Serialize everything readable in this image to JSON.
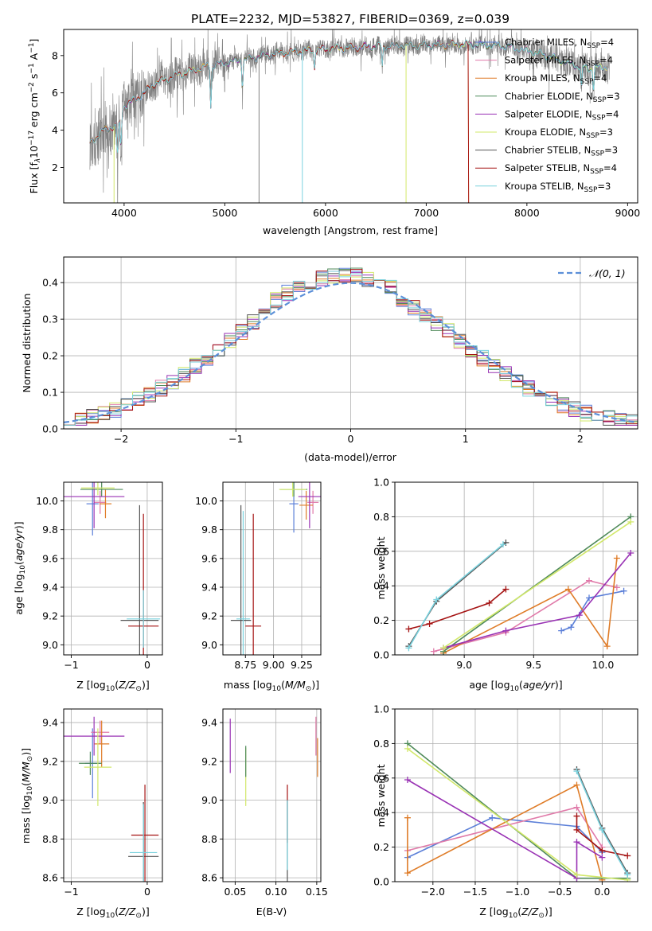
{
  "figure_title": "PLATE=2232, MJD=53827, FIBERID=0369, z=0.039",
  "colors": {
    "chabrier_miles": "#5b7fd8",
    "salpeter_miles": "#e07aa9",
    "kroupa_miles": "#df7c28",
    "chabrier_elodie": "#4f8a5a",
    "salpeter_elodie": "#9932b4",
    "kroupa_elodie": "#d2e86a",
    "chabrier_stelib": "#555555",
    "salpeter_stelib": "#a51414",
    "kroupa_stelib": "#7ad2de",
    "data": "#808080",
    "normal": "#5b8fd8"
  },
  "chart_data": [
    {
      "type": "line",
      "panel": "spectrum",
      "xlabel": "wavelength [Angstrom, rest frame]",
      "ylabel": "Flux [f_λ 10^-17 erg cm^-2 s^-1 A^-1]",
      "xlim": [
        3400,
        9100
      ],
      "ylim": [
        0.1,
        9.4
      ],
      "xticks": [
        "4000",
        "5000",
        "6000",
        "7000",
        "8000",
        "9000"
      ],
      "yticks": [
        "2",
        "4",
        "6",
        "8"
      ],
      "legend_position": "top-right",
      "legend": [
        {
          "label": "Chabrier MILES, N",
          "sub": "SSP",
          "tail": "=4",
          "color": "#5b7fd8"
        },
        {
          "label": "Salpeter MILES, N",
          "sub": "SSP",
          "tail": "=4",
          "color": "#e07aa9"
        },
        {
          "label": "Kroupa MILES, N",
          "sub": "SSP",
          "tail": "=4",
          "color": "#df7c28"
        },
        {
          "label": "Chabrier ELODIE, N",
          "sub": "SSP",
          "tail": "=3",
          "color": "#4f8a5a"
        },
        {
          "label": "Salpeter ELODIE, N",
          "sub": "SSP",
          "tail": "=4",
          "color": "#9932b4"
        },
        {
          "label": "Kroupa ELODIE, N",
          "sub": "SSP",
          "tail": "=3",
          "color": "#d2e86a"
        },
        {
          "label": "Chabrier STELIB, N",
          "sub": "SSP",
          "tail": "=3",
          "color": "#555555"
        },
        {
          "label": "Salpeter STELIB, N",
          "sub": "SSP",
          "tail": "=4",
          "color": "#a51414"
        },
        {
          "label": "Kroupa STELIB, N",
          "sub": "SSP",
          "tail": "=3",
          "color": "#7ad2de"
        }
      ],
      "continuum": [
        [
          3660,
          3.3
        ],
        [
          3700,
          3.5
        ],
        [
          3800,
          4.0
        ],
        [
          3900,
          4.2
        ],
        [
          3960,
          4.35
        ],
        [
          4000,
          5.3
        ],
        [
          4100,
          5.6
        ],
        [
          4200,
          6.0
        ],
        [
          4300,
          6.5
        ],
        [
          4500,
          6.9
        ],
        [
          4800,
          7.4
        ],
        [
          5000,
          7.6
        ],
        [
          5200,
          7.8
        ],
        [
          5500,
          8.1
        ],
        [
          6000,
          8.35
        ],
        [
          6500,
          8.5
        ],
        [
          7000,
          8.55
        ],
        [
          7400,
          8.6
        ],
        [
          7800,
          8.5
        ],
        [
          8200,
          8.0
        ],
        [
          8400,
          7.6
        ],
        [
          8600,
          7.3
        ],
        [
          8800,
          7.4
        ]
      ],
      "dips": [
        [
          3934,
          1.6
        ],
        [
          3968,
          1.4
        ],
        [
          4861,
          2.2
        ],
        [
          5175,
          1.4
        ],
        [
          5890,
          1.0
        ],
        [
          6563,
          1.2
        ],
        [
          8542,
          1.2
        ],
        [
          8662,
          1.2
        ]
      ],
      "model_end": {
        "default": 8800,
        "salpeter_stelib": 7420,
        "kroupa_miles": 7420
      },
      "noise_amp": 1.3,
      "noise_seed": 17
    },
    {
      "type": "step",
      "panel": "residual_histogram",
      "xlabel": "(data-model)/error",
      "ylabel": "Normed distribution",
      "xlim": [
        -2.5,
        2.5
      ],
      "ylim": [
        0,
        0.47
      ],
      "xticks": [
        "−2",
        "−1",
        "0",
        "1",
        "2"
      ],
      "yticks": [
        "0.0",
        "0.1",
        "0.2",
        "0.3",
        "0.4"
      ],
      "grid": true,
      "legend_position": "top-right",
      "normal_label": "𝒩(0, 1)",
      "bin_width": 0.1,
      "envelope": "gaussian"
    },
    {
      "type": "scatter_errorbar",
      "panel": "age_vs_Z",
      "xlabel": "Z [log10(Z/Z⊙)]",
      "ylabel": "age [log10(age/yr)]",
      "xlim": [
        -1.1,
        0.2
      ],
      "ylim": [
        8.93,
        10.13
      ],
      "xticks": [
        "−1",
        "0"
      ],
      "yticks": [
        "9.0",
        "9.2",
        "9.4",
        "9.6",
        "9.8",
        "10.0"
      ],
      "grid": true,
      "points": [
        {
          "model": "chabrier_miles",
          "x": -0.72,
          "y": 9.98,
          "xe": 0.08,
          "ye": 0.22
        },
        {
          "model": "salpeter_miles",
          "x": -0.62,
          "y": 9.99,
          "xe": 0.08,
          "ye": 0.08
        },
        {
          "model": "kroupa_miles",
          "x": -0.55,
          "y": 9.98,
          "xe": 0.08,
          "ye": 0.1
        },
        {
          "model": "chabrier_elodie",
          "x": -0.6,
          "y": 10.08,
          "xe": 0.28,
          "ye": 0.05
        },
        {
          "model": "salpeter_elodie",
          "x": -0.7,
          "y": 10.03,
          "xe": 0.4,
          "ye": 0.22
        },
        {
          "model": "kroupa_elodie",
          "x": -0.65,
          "y": 10.09,
          "xe": 0.22,
          "ye": 0.05
        },
        {
          "model": "chabrier_stelib",
          "x": -0.1,
          "y": 9.17,
          "xe": 0.25,
          "ye": 0.8
        },
        {
          "model": "salpeter_stelib",
          "x": -0.05,
          "y": 9.13,
          "xe": 0.2,
          "ye": 0.78
        },
        {
          "model": "kroupa_stelib",
          "x": -0.05,
          "y": 9.18,
          "xe": 0.22,
          "ye": 0.2
        }
      ]
    },
    {
      "type": "scatter_errorbar",
      "panel": "age_vs_mass",
      "xlabel": "mass [log10(M/M⊙)]",
      "ylabel": "",
      "xlim": [
        8.55,
        9.42
      ],
      "ylim": [
        8.93,
        10.13
      ],
      "xticks": [
        "8.75",
        "9.00",
        "9.25"
      ],
      "yticks": [
        "9.0",
        "9.2",
        "9.4",
        "9.6",
        "9.8",
        "10.0"
      ],
      "grid": true,
      "points": [
        {
          "model": "chabrier_miles",
          "x": 9.18,
          "y": 9.98,
          "xe": 0.04,
          "ye": 0.2
        },
        {
          "model": "salpeter_miles",
          "x": 9.35,
          "y": 9.99,
          "xe": 0.05,
          "ye": 0.08
        },
        {
          "model": "kroupa_miles",
          "x": 9.29,
          "y": 9.97,
          "xe": 0.06,
          "ye": 0.1
        },
        {
          "model": "chabrier_elodie",
          "x": 9.18,
          "y": 10.08,
          "xe": 0.12,
          "ye": 0.05
        },
        {
          "model": "salpeter_elodie",
          "x": 9.32,
          "y": 10.03,
          "xe": 0.1,
          "ye": 0.22
        },
        {
          "model": "kroupa_elodie",
          "x": 9.17,
          "y": 10.08,
          "xe": 0.12,
          "ye": 0.05
        },
        {
          "model": "chabrier_stelib",
          "x": 8.71,
          "y": 9.17,
          "xe": 0.09,
          "ye": 0.8
        },
        {
          "model": "salpeter_stelib",
          "x": 8.82,
          "y": 9.13,
          "xe": 0.07,
          "ye": 0.78
        },
        {
          "model": "kroupa_stelib",
          "x": 8.73,
          "y": 9.18,
          "xe": 0.06,
          "ye": 0.75
        }
      ]
    },
    {
      "type": "line",
      "panel": "mass_weight_vs_age",
      "xlabel": "age [log10(age/yr)]",
      "ylabel": "mass weight",
      "xlim": [
        8.5,
        10.25
      ],
      "ylim": [
        0,
        1.0
      ],
      "xticks": [
        "9.0",
        "9.5",
        "10.0"
      ],
      "yticks": [
        "0.0",
        "0.2",
        "0.4",
        "0.6",
        "0.8",
        "1.0"
      ],
      "grid": true,
      "series": [
        {
          "model": "chabrier_miles",
          "points": [
            [
              9.7,
              0.14
            ],
            [
              9.77,
              0.16
            ],
            [
              9.9,
              0.33
            ],
            [
              10.15,
              0.37
            ]
          ]
        },
        {
          "model": "salpeter_miles",
          "points": [
            [
              8.78,
              0.02
            ],
            [
              9.3,
              0.13
            ],
            [
              9.9,
              0.43
            ],
            [
              10.1,
              0.39
            ]
          ]
        },
        {
          "model": "kroupa_miles",
          "points": [
            [
              8.85,
              0.01
            ],
            [
              9.75,
              0.38
            ],
            [
              10.03,
              0.05
            ],
            [
              10.1,
              0.56
            ]
          ]
        },
        {
          "model": "chabrier_elodie",
          "points": [
            [
              8.85,
              0.02
            ],
            [
              10.2,
              0.8
            ]
          ]
        },
        {
          "model": "salpeter_elodie",
          "points": [
            [
              8.85,
              0.04
            ],
            [
              9.3,
              0.14
            ],
            [
              9.83,
              0.23
            ],
            [
              10.2,
              0.59
            ]
          ]
        },
        {
          "model": "kroupa_elodie",
          "points": [
            [
              8.85,
              0.04
            ],
            [
              10.2,
              0.77
            ]
          ]
        },
        {
          "model": "chabrier_stelib",
          "points": [
            [
              8.6,
              0.05
            ],
            [
              8.8,
              0.31
            ],
            [
              9.3,
              0.65
            ]
          ]
        },
        {
          "model": "salpeter_stelib",
          "points": [
            [
              8.6,
              0.15
            ],
            [
              8.75,
              0.18
            ],
            [
              9.18,
              0.3
            ],
            [
              9.3,
              0.38
            ]
          ]
        },
        {
          "model": "kroupa_stelib",
          "points": [
            [
              8.6,
              0.04
            ],
            [
              8.8,
              0.32
            ],
            [
              9.28,
              0.64
            ]
          ]
        }
      ]
    },
    {
      "type": "scatter_errorbar",
      "panel": "mass_vs_Z",
      "xlabel": "Z [log10(Z/Z⊙)]",
      "ylabel": "mass [log10(M/M⊙)]",
      "xlim": [
        -1.1,
        0.2
      ],
      "ylim": [
        8.58,
        9.47
      ],
      "xticks": [
        "−1",
        "0"
      ],
      "yticks": [
        "8.6",
        "8.8",
        "9.0",
        "9.2",
        "9.4"
      ],
      "grid": true,
      "points": [
        {
          "model": "chabrier_miles",
          "x": -0.72,
          "y": 9.19,
          "xe": 0.1,
          "ye": 0.18
        },
        {
          "model": "salpeter_miles",
          "x": -0.62,
          "y": 9.35,
          "xe": 0.12,
          "ye": 0.06
        },
        {
          "model": "kroupa_miles",
          "x": -0.6,
          "y": 9.29,
          "xe": 0.1,
          "ye": 0.12
        },
        {
          "model": "chabrier_elodie",
          "x": -0.75,
          "y": 9.19,
          "xe": 0.15,
          "ye": 0.06
        },
        {
          "model": "salpeter_elodie",
          "x": -0.7,
          "y": 9.33,
          "xe": 0.4,
          "ye": 0.1
        },
        {
          "model": "kroupa_elodie",
          "x": -0.65,
          "y": 9.17,
          "xe": 0.18,
          "ye": 0.2
        },
        {
          "model": "chabrier_stelib",
          "x": -0.05,
          "y": 8.71,
          "xe": 0.2,
          "ye": 0.28
        },
        {
          "model": "salpeter_stelib",
          "x": -0.03,
          "y": 8.82,
          "xe": 0.18,
          "ye": 0.26
        },
        {
          "model": "kroupa_stelib",
          "x": -0.05,
          "y": 8.73,
          "xe": 0.18,
          "ye": 0.25
        }
      ]
    },
    {
      "type": "scatter_errorbar",
      "panel": "mass_vs_ebv",
      "xlabel": "E(B-V)",
      "ylabel": "",
      "xlim": [
        0.035,
        0.155
      ],
      "ylim": [
        8.58,
        9.47
      ],
      "xticks": [
        "0.05",
        "0.10",
        "0.15"
      ],
      "yticks": [
        "8.6",
        "8.8",
        "9.0",
        "9.2",
        "9.4"
      ],
      "grid": true,
      "points": [
        {
          "model": "salpeter_elodie",
          "x": 0.044,
          "y": 9.28,
          "xe": 0,
          "ye": 0.14
        },
        {
          "model": "kroupa_elodie",
          "x": 0.063,
          "y": 9.12,
          "xe": 0,
          "ye": 0.15
        },
        {
          "model": "chabrier_elodie",
          "x": 0.063,
          "y": 9.2,
          "xe": 0,
          "ye": 0.08
        },
        {
          "model": "salpeter_stelib",
          "x": 0.114,
          "y": 8.93,
          "xe": 0,
          "ye": 0.15
        },
        {
          "model": "chabrier_stelib",
          "x": 0.114,
          "y": 8.76,
          "xe": 0,
          "ye": 0.24
        },
        {
          "model": "kroupa_stelib",
          "x": 0.114,
          "y": 8.82,
          "xe": 0,
          "ye": 0.18
        },
        {
          "model": "salpeter_miles",
          "x": 0.149,
          "y": 9.33,
          "xe": 0,
          "ye": 0.1
        },
        {
          "model": "kroupa_miles",
          "x": 0.151,
          "y": 9.22,
          "xe": 0,
          "ye": 0.1
        }
      ]
    },
    {
      "type": "line",
      "panel": "mass_weight_vs_Z",
      "xlabel": "Z [log10(Z/Z⊙)]",
      "ylabel": "mass weight",
      "xlim": [
        -2.45,
        0.42
      ],
      "ylim": [
        0,
        1.0
      ],
      "xticks": [
        "−2.0",
        "−1.5",
        "−1.0",
        "−0.5",
        "0.0"
      ],
      "yticks": [
        "0.0",
        "0.2",
        "0.4",
        "0.6",
        "0.8",
        "1.0"
      ],
      "grid": true,
      "series": [
        {
          "model": "chabrier_miles",
          "points": [
            [
              -2.3,
              0.14
            ],
            [
              -1.3,
              0.37
            ],
            [
              -0.3,
              0.32
            ],
            [
              0.0,
              0.17
            ]
          ]
        },
        {
          "model": "salpeter_miles",
          "points": [
            [
              -2.3,
              0.18
            ],
            [
              -0.3,
              0.43
            ],
            [
              0.0,
              0.2
            ]
          ]
        },
        {
          "model": "kroupa_miles",
          "points": [
            [
              -2.3,
              0.37
            ],
            [
              -2.3,
              0.05
            ],
            [
              -0.3,
              0.56
            ],
            [
              0.0,
              0.01
            ]
          ]
        },
        {
          "model": "chabrier_elodie",
          "points": [
            [
              -2.3,
              0.8
            ],
            [
              -0.3,
              0.02
            ],
            [
              0.3,
              0.02
            ]
          ]
        },
        {
          "model": "salpeter_elodie",
          "points": [
            [
              -2.3,
              0.59
            ],
            [
              -0.3,
              0.02
            ],
            [
              -0.3,
              0.23
            ],
            [
              0.0,
              0.14
            ]
          ]
        },
        {
          "model": "kroupa_elodie",
          "points": [
            [
              -2.3,
              0.77
            ],
            [
              -0.3,
              0.04
            ],
            [
              0.3,
              0.01
            ]
          ]
        },
        {
          "model": "chabrier_stelib",
          "points": [
            [
              -0.3,
              0.65
            ],
            [
              0.0,
              0.31
            ],
            [
              0.3,
              0.05
            ]
          ]
        },
        {
          "model": "salpeter_stelib",
          "points": [
            [
              -0.3,
              0.38
            ],
            [
              -0.3,
              0.3
            ],
            [
              0.0,
              0.18
            ],
            [
              0.3,
              0.15
            ]
          ]
        },
        {
          "model": "kroupa_stelib",
          "points": [
            [
              -0.3,
              0.64
            ],
            [
              0.0,
              0.3
            ],
            [
              0.3,
              0.04
            ]
          ]
        }
      ]
    }
  ]
}
